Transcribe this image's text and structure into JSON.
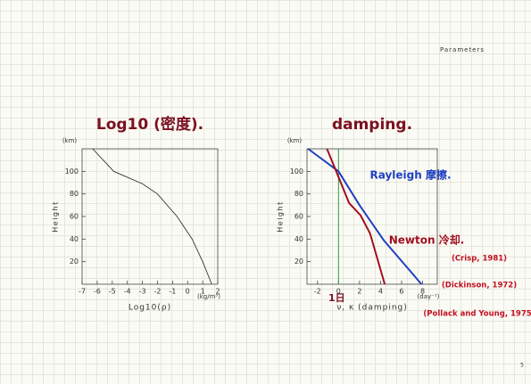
{
  "header": "Parameters",
  "page_number": "5",
  "chart_data": [
    {
      "type": "line",
      "title": "Log10 (密度).",
      "y_label": "Height",
      "y_unit": "(km)",
      "x_label": "Log10(ρ)",
      "x_unit": "(kg/m³)",
      "xlim": [
        -7,
        2
      ],
      "xticks": [
        -7,
        -6,
        -5,
        -4,
        -3,
        -2,
        -1,
        0,
        1,
        2
      ],
      "ylim": [
        0,
        120
      ],
      "yticks": [
        20,
        40,
        60,
        80,
        100
      ],
      "series": [
        {
          "color": "#333333",
          "x": [
            -6.3,
            -4.9,
            -3.0,
            -2.0,
            -0.7,
            0.3,
            1.0,
            1.6
          ],
          "values": [
            120,
            100,
            89,
            80,
            60,
            40,
            20,
            0
          ]
        }
      ]
    },
    {
      "type": "line",
      "title": "damping.",
      "y_label": "Height",
      "y_unit": "(km)",
      "x_label": "ν, κ (damping)",
      "x_unit": "(day⁻¹)",
      "xlim": [
        -3,
        9.4
      ],
      "xticks": [
        -2,
        0,
        2,
        4,
        6,
        8
      ],
      "ylim": [
        0,
        120
      ],
      "yticks": [
        20,
        40,
        60,
        80,
        100
      ],
      "reference_line": {
        "x": 0,
        "color": "#2a9a3a",
        "label": "1日"
      },
      "series": [
        {
          "name": "Rayleigh 摩擦.",
          "color": "#2040c0",
          "x": [
            -2.9,
            0,
            2,
            4.3,
            7.9
          ],
          "values": [
            120,
            100,
            70,
            39,
            0
          ]
        },
        {
          "name": "Newton 冷却.",
          "color": "#a01020",
          "x": [
            -1.1,
            0,
            1,
            2.1,
            3,
            4.4
          ],
          "values": [
            120,
            95,
            72,
            61,
            45,
            0
          ]
        }
      ],
      "references": [
        "(Crisp, 1981)",
        "(Dickinson, 1972)",
        "(Pollack and Young, 1975)"
      ]
    }
  ]
}
